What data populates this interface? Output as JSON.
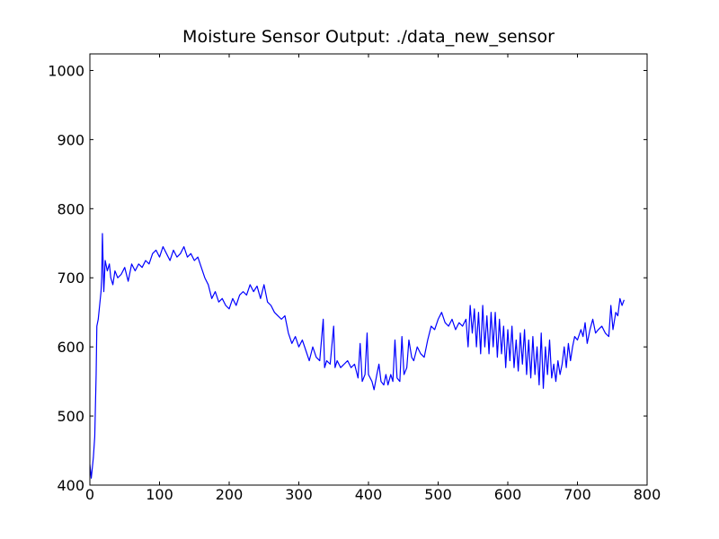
{
  "chart_data": {
    "type": "line",
    "title": "Moisture Sensor Output: ./data_new_sensor",
    "x": [
      0,
      2,
      5,
      7,
      9,
      10,
      12,
      14,
      16,
      17,
      18,
      20,
      22,
      25,
      28,
      30,
      33,
      36,
      40,
      45,
      50,
      55,
      60,
      65,
      70,
      75,
      80,
      85,
      90,
      95,
      100,
      105,
      110,
      115,
      120,
      125,
      130,
      135,
      140,
      145,
      150,
      155,
      160,
      165,
      170,
      175,
      180,
      185,
      190,
      195,
      200,
      205,
      210,
      215,
      220,
      225,
      230,
      235,
      240,
      245,
      250,
      255,
      260,
      265,
      270,
      275,
      280,
      285,
      290,
      295,
      300,
      305,
      310,
      315,
      320,
      325,
      330,
      335,
      337,
      340,
      345,
      350,
      352,
      355,
      360,
      365,
      370,
      375,
      380,
      385,
      388,
      391,
      395,
      398,
      400,
      405,
      408,
      412,
      415,
      418,
      422,
      425,
      428,
      432,
      435,
      438,
      441,
      445,
      448,
      451,
      455,
      458,
      462,
      465,
      470,
      475,
      480,
      485,
      490,
      495,
      500,
      505,
      510,
      515,
      520,
      525,
      530,
      535,
      540,
      543,
      546,
      549,
      552,
      555,
      558,
      561,
      564,
      567,
      570,
      573,
      576,
      579,
      582,
      585,
      588,
      591,
      594,
      597,
      600,
      603,
      606,
      609,
      612,
      615,
      618,
      621,
      624,
      627,
      630,
      633,
      636,
      639,
      642,
      645,
      648,
      651,
      654,
      657,
      660,
      663,
      666,
      669,
      672,
      675,
      678,
      681,
      684,
      687,
      690,
      693,
      696,
      700,
      705,
      708,
      711,
      714,
      718,
      722,
      726,
      730,
      735,
      740,
      745,
      748,
      751,
      755,
      758,
      761,
      764,
      767
    ],
    "series": [
      {
        "color": "#0000ff",
        "values": [
          430,
          410,
          440,
          470,
          560,
          630,
          640,
          660,
          680,
          700,
          764,
          680,
          725,
          710,
          720,
          700,
          690,
          710,
          700,
          705,
          715,
          695,
          720,
          710,
          720,
          715,
          725,
          720,
          735,
          740,
          730,
          745,
          735,
          725,
          740,
          730,
          735,
          745,
          730,
          735,
          725,
          730,
          715,
          700,
          690,
          670,
          680,
          665,
          670,
          660,
          655,
          670,
          660,
          675,
          680,
          675,
          690,
          680,
          688,
          670,
          690,
          665,
          660,
          650,
          645,
          640,
          645,
          620,
          605,
          615,
          600,
          610,
          595,
          580,
          600,
          585,
          580,
          640,
          570,
          580,
          575,
          630,
          570,
          580,
          570,
          575,
          580,
          570,
          575,
          555,
          605,
          550,
          560,
          620,
          560,
          550,
          538,
          560,
          575,
          550,
          545,
          560,
          545,
          560,
          550,
          610,
          555,
          550,
          615,
          560,
          570,
          610,
          585,
          580,
          600,
          590,
          585,
          610,
          630,
          625,
          640,
          650,
          635,
          630,
          640,
          625,
          635,
          630,
          640,
          600,
          660,
          620,
          655,
          600,
          650,
          590,
          660,
          600,
          645,
          590,
          650,
          600,
          650,
          585,
          640,
          590,
          630,
          570,
          625,
          580,
          630,
          570,
          610,
          565,
          620,
          575,
          625,
          560,
          610,
          555,
          615,
          560,
          600,
          545,
          620,
          540,
          600,
          560,
          610,
          555,
          575,
          550,
          580,
          560,
          575,
          600,
          570,
          605,
          580,
          600,
          615,
          610,
          625,
          615,
          635,
          605,
          625,
          640,
          620,
          625,
          630,
          620,
          615,
          660,
          625,
          650,
          645,
          670,
          660,
          668
        ]
      }
    ],
    "xlim": [
      0,
      800
    ],
    "xticks": [
      0,
      100,
      200,
      300,
      400,
      500,
      600,
      700,
      800
    ],
    "ylim": [
      400,
      1024
    ],
    "yticks": [
      400,
      500,
      600,
      700,
      800,
      900,
      1000
    ]
  }
}
